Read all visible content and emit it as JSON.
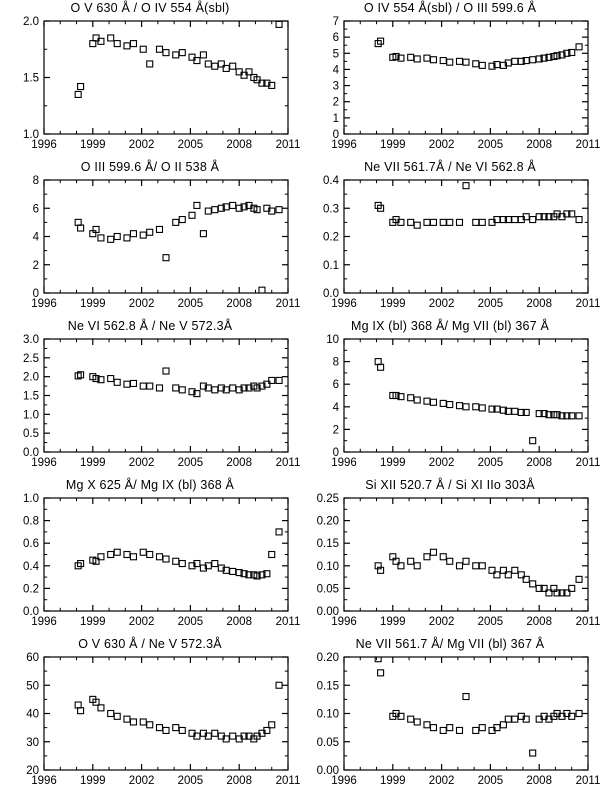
{
  "page": {
    "background": "#ffffff",
    "axis_color": "#000000",
    "marker": "open-square"
  },
  "chart_data": [
    {
      "type": "scatter",
      "title": "O V 630 Å / O IV 554 Å(sbl)",
      "marker": "open-square",
      "xlim": [
        1996,
        2011
      ],
      "ylim": [
        1.0,
        2.0
      ],
      "xticks": [
        1996,
        1999,
        2002,
        2005,
        2008,
        2011
      ],
      "xtick_labels": [
        "1996",
        "1999",
        "2002",
        "2005",
        "2008",
        "2011"
      ],
      "yticks": [
        1.0,
        1.5,
        2.0
      ],
      "ytick_labels": [
        "1.0",
        "1.5",
        "2.0"
      ],
      "x": [
        1998.1,
        1998.25,
        1999.0,
        1999.2,
        1999.5,
        2000.1,
        2000.5,
        2001.1,
        2001.5,
        2002.1,
        2002.5,
        2003.1,
        2003.5,
        2004.1,
        2004.5,
        2005.1,
        2005.4,
        2005.8,
        2006.1,
        2006.5,
        2006.9,
        2007.2,
        2007.6,
        2008.0,
        2008.3,
        2008.6,
        2008.9,
        2009.1,
        2009.4,
        2009.7,
        2010.0,
        2010.45
      ],
      "y": [
        1.35,
        1.42,
        1.8,
        1.85,
        1.82,
        1.85,
        1.8,
        1.78,
        1.8,
        1.75,
        1.62,
        1.75,
        1.72,
        1.7,
        1.72,
        1.68,
        1.65,
        1.7,
        1.62,
        1.6,
        1.62,
        1.58,
        1.6,
        1.55,
        1.52,
        1.55,
        1.5,
        1.48,
        1.45,
        1.45,
        1.43,
        1.97
      ]
    },
    {
      "type": "scatter",
      "title": "O IV 554 Å(sbl) / O III 599.6 Å",
      "marker": "open-square",
      "xlim": [
        1996,
        2011
      ],
      "ylim": [
        0,
        7
      ],
      "xticks": [
        1996,
        1999,
        2002,
        2005,
        2008,
        2011
      ],
      "xtick_labels": [
        "1996",
        "1999",
        "2002",
        "2005",
        "2008",
        "2011"
      ],
      "yticks": [
        0,
        1,
        2,
        3,
        4,
        5,
        6,
        7
      ],
      "ytick_labels": [
        "0",
        "1",
        "2",
        "3",
        "4",
        "5",
        "6",
        "7"
      ],
      "x": [
        1998.1,
        1998.25,
        1999.0,
        1999.2,
        1999.5,
        2000.1,
        2000.5,
        2001.1,
        2001.5,
        2002.1,
        2002.5,
        2003.1,
        2003.5,
        2004.1,
        2004.5,
        2005.1,
        2005.4,
        2005.8,
        2006.1,
        2006.5,
        2006.9,
        2007.2,
        2007.6,
        2008.0,
        2008.3,
        2008.6,
        2008.9,
        2009.1,
        2009.4,
        2009.7,
        2010.0,
        2010.45
      ],
      "y": [
        5.6,
        5.75,
        4.75,
        4.8,
        4.7,
        4.75,
        4.65,
        4.7,
        4.6,
        4.55,
        4.45,
        4.5,
        4.45,
        4.35,
        4.25,
        4.2,
        4.3,
        4.25,
        4.4,
        4.5,
        4.5,
        4.55,
        4.6,
        4.65,
        4.7,
        4.75,
        4.8,
        4.85,
        4.9,
        5.0,
        5.05,
        5.4
      ]
    },
    {
      "type": "scatter",
      "title": "O III 599.6 Å/ O II 538 Å",
      "marker": "open-square",
      "xlim": [
        1996,
        2011
      ],
      "ylim": [
        0,
        8
      ],
      "xticks": [
        1996,
        1999,
        2002,
        2005,
        2008,
        2011
      ],
      "xtick_labels": [
        "1996",
        "1999",
        "2002",
        "2005",
        "2008",
        "2011"
      ],
      "yticks": [
        0,
        2,
        4,
        6,
        8
      ],
      "ytick_labels": [
        "0",
        "2",
        "4",
        "6",
        "8"
      ],
      "x": [
        1998.1,
        1998.25,
        1999.0,
        1999.2,
        1999.5,
        2000.1,
        2000.5,
        2001.1,
        2001.5,
        2002.1,
        2002.5,
        2003.1,
        2003.5,
        2004.1,
        2004.5,
        2005.1,
        2005.4,
        2005.8,
        2006.1,
        2006.5,
        2006.9,
        2007.2,
        2007.6,
        2008.0,
        2008.3,
        2008.6,
        2008.9,
        2009.1,
        2009.4,
        2009.7,
        2010.0,
        2010.45
      ],
      "y": [
        5.0,
        4.6,
        4.2,
        4.5,
        3.9,
        3.8,
        4.0,
        3.9,
        4.2,
        4.1,
        4.3,
        4.5,
        2.5,
        5.0,
        5.2,
        5.5,
        6.2,
        4.2,
        5.8,
        5.9,
        6.0,
        6.1,
        6.2,
        6.0,
        6.1,
        6.2,
        6.0,
        5.9,
        0.2,
        6.0,
        5.8,
        5.9
      ]
    },
    {
      "type": "scatter",
      "title": "Ne VII 561.7Å / Ne VI 562.8 Å",
      "marker": "open-square",
      "xlim": [
        1996,
        2011
      ],
      "ylim": [
        0.0,
        0.4
      ],
      "xticks": [
        1996,
        1999,
        2002,
        2005,
        2008,
        2011
      ],
      "xtick_labels": [
        "1996",
        "1999",
        "2002",
        "2005",
        "2008",
        "2011"
      ],
      "yticks": [
        0.0,
        0.1,
        0.2,
        0.3,
        0.4
      ],
      "ytick_labels": [
        "0.0",
        "0.1",
        "0.2",
        "0.3",
        "0.4"
      ],
      "x": [
        1998.1,
        1998.25,
        1999.0,
        1999.2,
        1999.5,
        2000.1,
        2000.5,
        2001.1,
        2001.5,
        2002.1,
        2002.5,
        2003.1,
        2003.5,
        2004.1,
        2004.5,
        2005.1,
        2005.4,
        2005.8,
        2006.1,
        2006.5,
        2006.9,
        2007.2,
        2007.6,
        2008.0,
        2008.3,
        2008.6,
        2008.9,
        2009.1,
        2009.4,
        2009.7,
        2010.0,
        2010.45
      ],
      "y": [
        0.31,
        0.3,
        0.25,
        0.26,
        0.25,
        0.25,
        0.24,
        0.25,
        0.25,
        0.25,
        0.25,
        0.25,
        0.38,
        0.25,
        0.25,
        0.25,
        0.26,
        0.26,
        0.26,
        0.26,
        0.26,
        0.27,
        0.26,
        0.27,
        0.27,
        0.27,
        0.27,
        0.28,
        0.27,
        0.28,
        0.28,
        0.26
      ]
    },
    {
      "type": "scatter",
      "title": "Ne VI 562.8 Å / Ne V 572.3Å",
      "marker": "open-square",
      "xlim": [
        1996,
        2011
      ],
      "ylim": [
        0.0,
        3.0
      ],
      "xticks": [
        1996,
        1999,
        2002,
        2005,
        2008,
        2011
      ],
      "xtick_labels": [
        "1996",
        "1999",
        "2002",
        "2005",
        "2008",
        "2011"
      ],
      "yticks": [
        0.0,
        0.5,
        1.0,
        1.5,
        2.0,
        2.5,
        3.0
      ],
      "ytick_labels": [
        "0.0",
        "0.5",
        "1.0",
        "1.5",
        "2.0",
        "2.5",
        "3.0"
      ],
      "x": [
        1998.1,
        1998.25,
        1999.0,
        1999.2,
        1999.5,
        2000.1,
        2000.5,
        2001.1,
        2001.5,
        2002.1,
        2002.5,
        2003.1,
        2003.5,
        2004.1,
        2004.5,
        2005.1,
        2005.4,
        2005.8,
        2006.1,
        2006.5,
        2006.9,
        2007.2,
        2007.6,
        2008.0,
        2008.3,
        2008.6,
        2008.9,
        2009.1,
        2009.4,
        2009.7,
        2010.0,
        2010.45
      ],
      "y": [
        2.02,
        2.05,
        2.0,
        1.95,
        1.92,
        1.95,
        1.85,
        1.8,
        1.82,
        1.75,
        1.75,
        1.7,
        2.15,
        1.7,
        1.65,
        1.6,
        1.55,
        1.75,
        1.7,
        1.65,
        1.7,
        1.65,
        1.7,
        1.65,
        1.7,
        1.7,
        1.75,
        1.7,
        1.75,
        1.8,
        1.9,
        1.9
      ]
    },
    {
      "type": "scatter",
      "title": "Mg IX (bl) 368 Å/ Mg VII (bl) 367 Å",
      "marker": "open-square",
      "xlim": [
        1996,
        2011
      ],
      "ylim": [
        0,
        10
      ],
      "xticks": [
        1996,
        1999,
        2002,
        2005,
        2008,
        2011
      ],
      "xtick_labels": [
        "1996",
        "1999",
        "2002",
        "2005",
        "2008",
        "2011"
      ],
      "yticks": [
        0,
        2,
        4,
        6,
        8,
        10
      ],
      "ytick_labels": [
        "0",
        "2",
        "4",
        "6",
        "8",
        "10"
      ],
      "x": [
        1998.1,
        1998.25,
        1999.0,
        1999.2,
        1999.5,
        2000.1,
        2000.5,
        2001.1,
        2001.5,
        2002.1,
        2002.5,
        2003.1,
        2003.5,
        2004.1,
        2004.5,
        2005.1,
        2005.4,
        2005.8,
        2006.1,
        2006.5,
        2006.9,
        2007.2,
        2007.6,
        2008.0,
        2008.3,
        2008.6,
        2008.9,
        2009.1,
        2009.4,
        2009.7,
        2010.0,
        2010.45
      ],
      "y": [
        8.0,
        7.5,
        5.0,
        5.0,
        4.9,
        4.8,
        4.6,
        4.5,
        4.4,
        4.3,
        4.2,
        4.1,
        4.0,
        4.0,
        3.9,
        3.8,
        3.8,
        3.7,
        3.6,
        3.6,
        3.5,
        3.5,
        1.0,
        3.4,
        3.4,
        3.3,
        3.3,
        3.3,
        3.2,
        3.2,
        3.2,
        3.2
      ]
    },
    {
      "type": "scatter",
      "title": "Mg X 625 Å/ Mg IX (bl) 368 Å",
      "marker": "open-square",
      "xlim": [
        1996,
        2011
      ],
      "ylim": [
        0.0,
        1.0
      ],
      "xticks": [
        1996,
        1999,
        2002,
        2005,
        2008,
        2011
      ],
      "xtick_labels": [
        "1996",
        "1999",
        "2002",
        "2005",
        "2008",
        "2011"
      ],
      "yticks": [
        0.0,
        0.2,
        0.4,
        0.6,
        0.8,
        1.0
      ],
      "ytick_labels": [
        "0.0",
        "0.2",
        "0.4",
        "0.6",
        "0.8",
        "1.0"
      ],
      "x": [
        1998.1,
        1998.25,
        1999.0,
        1999.2,
        1999.5,
        2000.1,
        2000.5,
        2001.1,
        2001.5,
        2002.1,
        2002.5,
        2003.1,
        2003.5,
        2004.1,
        2004.5,
        2005.1,
        2005.4,
        2005.8,
        2006.1,
        2006.5,
        2006.9,
        2007.2,
        2007.6,
        2008.0,
        2008.3,
        2008.6,
        2008.9,
        2009.1,
        2009.4,
        2009.7,
        2010.0,
        2010.45
      ],
      "y": [
        0.4,
        0.42,
        0.45,
        0.44,
        0.48,
        0.5,
        0.52,
        0.5,
        0.48,
        0.52,
        0.5,
        0.48,
        0.46,
        0.44,
        0.42,
        0.4,
        0.42,
        0.38,
        0.4,
        0.42,
        0.38,
        0.36,
        0.35,
        0.34,
        0.33,
        0.32,
        0.32,
        0.31,
        0.32,
        0.33,
        0.5,
        0.7
      ]
    },
    {
      "type": "scatter",
      "title": "Si XII 520.7 Å / Si XI IIo 303Å",
      "marker": "open-square",
      "xlim": [
        1996,
        2011
      ],
      "ylim": [
        0.0,
        0.25
      ],
      "xticks": [
        1996,
        1999,
        2002,
        2005,
        2008,
        2011
      ],
      "xtick_labels": [
        "1996",
        "1999",
        "2002",
        "2005",
        "2008",
        "2011"
      ],
      "yticks": [
        0.0,
        0.05,
        0.1,
        0.15,
        0.2,
        0.25
      ],
      "ytick_labels": [
        "0.00",
        "0.05",
        "0.10",
        "0.15",
        "0.20",
        "0.25"
      ],
      "x": [
        1998.1,
        1998.25,
        1999.0,
        1999.2,
        1999.5,
        2000.1,
        2000.5,
        2001.1,
        2001.5,
        2002.1,
        2002.5,
        2003.1,
        2003.5,
        2004.1,
        2004.5,
        2005.1,
        2005.4,
        2005.8,
        2006.1,
        2006.5,
        2006.9,
        2007.2,
        2007.6,
        2008.0,
        2008.3,
        2008.6,
        2008.9,
        2009.1,
        2009.4,
        2009.7,
        2010.0,
        2010.45
      ],
      "y": [
        0.1,
        0.09,
        0.12,
        0.11,
        0.1,
        0.11,
        0.1,
        0.12,
        0.13,
        0.12,
        0.11,
        0.1,
        0.11,
        0.1,
        0.1,
        0.09,
        0.08,
        0.09,
        0.08,
        0.09,
        0.08,
        0.07,
        0.06,
        0.05,
        0.05,
        0.04,
        0.05,
        0.04,
        0.04,
        0.04,
        0.05,
        0.07
      ]
    },
    {
      "type": "scatter",
      "title": "O V 630 Å / Ne V 572.3Å",
      "marker": "open-square",
      "xlim": [
        1996,
        2011
      ],
      "ylim": [
        20,
        60
      ],
      "xticks": [
        1996,
        1999,
        2002,
        2005,
        2008,
        2011
      ],
      "xtick_labels": [
        "1996",
        "1999",
        "2002",
        "2005",
        "2008",
        "2011"
      ],
      "yticks": [
        20,
        30,
        40,
        50,
        60
      ],
      "ytick_labels": [
        "20",
        "30",
        "40",
        "50",
        "60"
      ],
      "x": [
        1998.1,
        1998.25,
        1999.0,
        1999.2,
        1999.5,
        2000.1,
        2000.5,
        2001.1,
        2001.5,
        2002.1,
        2002.5,
        2003.1,
        2003.5,
        2004.1,
        2004.5,
        2005.1,
        2005.4,
        2005.8,
        2006.1,
        2006.5,
        2006.9,
        2007.2,
        2007.6,
        2008.0,
        2008.3,
        2008.6,
        2008.9,
        2009.1,
        2009.4,
        2009.7,
        2010.0,
        2010.45
      ],
      "y": [
        43,
        41,
        45,
        44,
        42,
        40,
        39,
        38,
        37,
        37,
        36,
        35,
        34,
        35,
        34,
        33,
        32,
        33,
        32,
        33,
        32,
        31,
        32,
        31,
        32,
        32,
        31,
        32,
        33,
        34,
        36,
        50
      ]
    },
    {
      "type": "scatter",
      "title": "Ne VII 561.7 Å/ Mg VII (bl) 367 Å",
      "marker": "open-square",
      "xlim": [
        1996,
        2011
      ],
      "ylim": [
        0.0,
        0.2
      ],
      "xticks": [
        1996,
        1999,
        2002,
        2005,
        2008,
        2011
      ],
      "xtick_labels": [
        "1996",
        "1999",
        "2002",
        "2005",
        "2008",
        "2011"
      ],
      "yticks": [
        0.0,
        0.05,
        0.1,
        0.15,
        0.2
      ],
      "ytick_labels": [
        "0.00",
        "0.05",
        "0.10",
        "0.15",
        "0.20"
      ],
      "x": [
        1998.1,
        1998.25,
        1999.0,
        1999.2,
        1999.5,
        2000.1,
        2000.5,
        2001.1,
        2001.5,
        2002.1,
        2002.5,
        2003.1,
        2003.5,
        2004.1,
        2004.5,
        2005.1,
        2005.4,
        2005.8,
        2006.1,
        2006.5,
        2006.9,
        2007.2,
        2007.6,
        2008.0,
        2008.3,
        2008.6,
        2008.9,
        2009.1,
        2009.4,
        2009.7,
        2010.0,
        2010.45
      ],
      "y": [
        0.197,
        0.172,
        0.095,
        0.1,
        0.095,
        0.09,
        0.085,
        0.08,
        0.075,
        0.07,
        0.075,
        0.07,
        0.13,
        0.07,
        0.075,
        0.07,
        0.075,
        0.08,
        0.09,
        0.09,
        0.095,
        0.09,
        0.03,
        0.09,
        0.095,
        0.09,
        0.095,
        0.1,
        0.095,
        0.1,
        0.095,
        0.1
      ]
    }
  ]
}
